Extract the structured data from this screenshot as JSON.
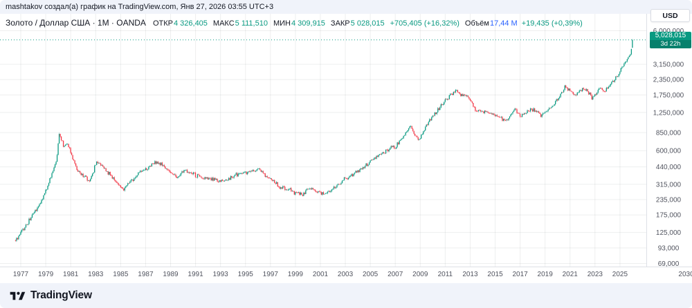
{
  "header": {
    "attribution": "mashtakov создал(а) график на TradingView.com, Янв 27, 2026 03:55 UTC+3",
    "currency": "USD"
  },
  "legend": {
    "title": "Золото / Доллар США · 1M · OANDA",
    "open": {
      "label": "ОТКР",
      "value": "4 326,405"
    },
    "high": {
      "label": "МАКС",
      "value": "5 111,510"
    },
    "low": {
      "label": "МИН",
      "value": "4 309,915"
    },
    "close": {
      "label": "ЗАКР",
      "value": "5 028,015"
    },
    "change": "+705,405 (+16,32%)",
    "volume": {
      "label": "Объём",
      "value": "17,44 M",
      "change": "+19,435 (+0,39%)"
    }
  },
  "footer": {
    "brand": "TradingView"
  },
  "theme": {
    "up": "#089981",
    "down": "#F23645",
    "volume_value": "#2962FF",
    "grid": "rgba(42,46,57,0.08)",
    "axis_border": "#DDE0E6",
    "axis_text": "#50535E"
  },
  "chart_data": {
    "type": "candlestick",
    "symbol": "Золото / Доллар США",
    "interval": "1M",
    "scale": "log",
    "countdown": "3d 22h",
    "last_candle": {
      "open": 4326405,
      "high": 5111510,
      "low": 4309915,
      "close": 5028015,
      "close_label": "5,028,015"
    },
    "y_ticks": [
      {
        "v": 6000000,
        "label": "6,000,000"
      },
      {
        "v": 3150000,
        "label": "3,150,000"
      },
      {
        "v": 2350000,
        "label": "2,350,000"
      },
      {
        "v": 1750000,
        "label": "1,750,000"
      },
      {
        "v": 1250000,
        "label": "1,250,000"
      },
      {
        "v": 850000,
        "label": "850,000"
      },
      {
        "v": 600000,
        "label": "600,000"
      },
      {
        "v": 440000,
        "label": "440,000"
      },
      {
        "v": 315000,
        "label": "315,000"
      },
      {
        "v": 235000,
        "label": "235,000"
      },
      {
        "v": 175000,
        "label": "175,000"
      },
      {
        "v": 125000,
        "label": "125,000"
      },
      {
        "v": 93000,
        "label": "93,000"
      },
      {
        "v": 69000,
        "label": "69,000"
      }
    ],
    "x_ticks": [
      {
        "v": 1977,
        "label": "1977"
      },
      {
        "v": 1979,
        "label": "1979"
      },
      {
        "v": 1981,
        "label": "1981"
      },
      {
        "v": 1983,
        "label": "1983"
      },
      {
        "v": 1985,
        "label": "1985"
      },
      {
        "v": 1987,
        "label": "1987"
      },
      {
        "v": 1989,
        "label": "1989"
      },
      {
        "v": 1991,
        "label": "1991"
      },
      {
        "v": 1993,
        "label": "1993"
      },
      {
        "v": 1995,
        "label": "1995"
      },
      {
        "v": 1997,
        "label": "1997"
      },
      {
        "v": 1999,
        "label": "1999"
      },
      {
        "v": 2001,
        "label": "2001"
      },
      {
        "v": 2003,
        "label": "2003"
      },
      {
        "v": 2005,
        "label": "2005"
      },
      {
        "v": 2007,
        "label": "2007"
      },
      {
        "v": 2009,
        "label": "2009"
      },
      {
        "v": 2011,
        "label": "2011"
      },
      {
        "v": 2013,
        "label": "2013"
      },
      {
        "v": 2015,
        "label": "2015"
      },
      {
        "v": 2017,
        "label": "2017"
      },
      {
        "v": 2019,
        "label": "2019"
      },
      {
        "v": 2021,
        "label": "2021"
      },
      {
        "v": 2023,
        "label": "2023"
      },
      {
        "v": 2025,
        "label": "2025"
      },
      {
        "v": 2030.3,
        "label": "2030"
      }
    ],
    "series_start": 1976.58,
    "series_end": 2026.0,
    "series_anchors": [
      [
        1976.6,
        108000
      ],
      [
        1977.5,
        147000
      ],
      [
        1978.8,
        243000
      ],
      [
        1979.9,
        512000
      ],
      [
        1980.05,
        850000
      ],
      [
        1980.5,
        640000
      ],
      [
        1980.75,
        700000
      ],
      [
        1981.5,
        420000
      ],
      [
        1982.5,
        330000
      ],
      [
        1983.1,
        490000
      ],
      [
        1985.2,
        290000
      ],
      [
        1986.5,
        390000
      ],
      [
        1987.9,
        486000
      ],
      [
        1989.5,
        365000
      ],
      [
        1990.1,
        410000
      ],
      [
        1991.5,
        358000
      ],
      [
        1993.2,
        330000
      ],
      [
        1994.5,
        385000
      ],
      [
        1996.1,
        415000
      ],
      [
        1997.8,
        300000
      ],
      [
        1999.6,
        256000
      ],
      [
        2000.0,
        290000
      ],
      [
        2001.3,
        258000
      ],
      [
        2002.5,
        320000
      ],
      [
        2004.0,
        410000
      ],
      [
        2006.4,
        620000
      ],
      [
        2007.0,
        650000
      ],
      [
        2008.2,
        960000
      ],
      [
        2008.9,
        730000
      ],
      [
        2009.9,
        1150000
      ],
      [
        2011.7,
        1880000
      ],
      [
        2012.8,
        1700000
      ],
      [
        2013.5,
        1280000
      ],
      [
        2014.2,
        1290000
      ],
      [
        2015.95,
        1060000
      ],
      [
        2016.6,
        1350000
      ],
      [
        2017.0,
        1150000
      ],
      [
        2018.0,
        1330000
      ],
      [
        2018.7,
        1185000
      ],
      [
        2019.8,
        1500000
      ],
      [
        2020.6,
        2030000
      ],
      [
        2021.3,
        1750000
      ],
      [
        2022.2,
        1990000
      ],
      [
        2022.8,
        1640000
      ],
      [
        2023.4,
        1990000
      ],
      [
        2023.8,
        1860000
      ],
      [
        2024.9,
        2650000
      ],
      [
        2025.4,
        3300000
      ],
      [
        2025.75,
        3650000
      ],
      [
        2025.95,
        4326000
      ],
      [
        2026.0,
        5028015
      ]
    ]
  }
}
